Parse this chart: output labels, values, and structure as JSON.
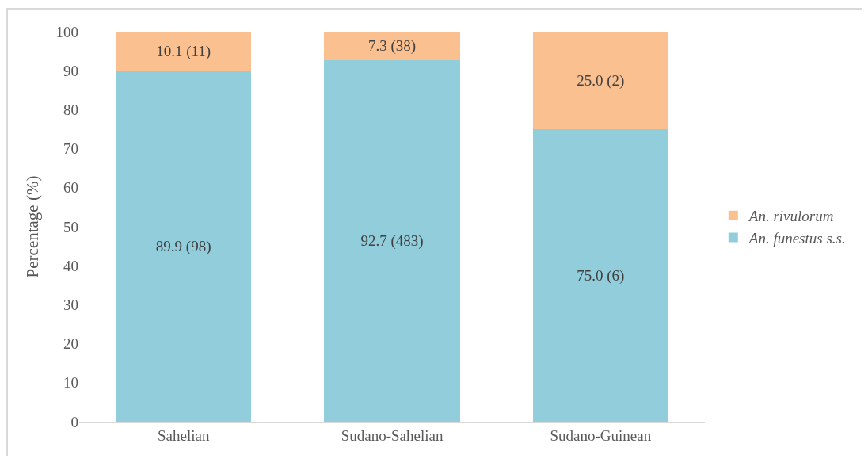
{
  "chart_data": {
    "type": "bar",
    "stacked": true,
    "ylabel": "Percentage (%)",
    "categories": [
      "Sahelian",
      "Sudano-Sahelian",
      "Sudano-Guinean"
    ],
    "series": [
      {
        "name": "An. funestus s.s.",
        "color": "#92cddc",
        "values": [
          89.9,
          92.7,
          75.0
        ],
        "value_labels": [
          "89.9 (98)",
          "92.7 (483)",
          "75.0 (6)"
        ]
      },
      {
        "name": "An. rivulorum",
        "color": "#fac090",
        "values": [
          10.1,
          7.3,
          25.0
        ],
        "value_labels": [
          "10.1 (11)",
          "7.3 (38)",
          "25.0 (2)"
        ]
      }
    ],
    "ylim": [
      0,
      100
    ],
    "yticks": [
      0,
      10,
      20,
      30,
      40,
      50,
      60,
      70,
      80,
      90,
      100
    ],
    "legend": "right"
  }
}
